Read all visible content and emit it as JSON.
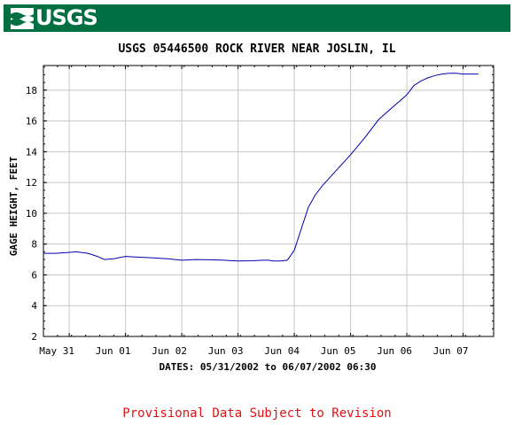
{
  "header": {
    "logo_text": "USGS",
    "logo_icon": "usgs-wave-icon",
    "banner_color": "#006f41"
  },
  "footer": {
    "note": "Provisional Data Subject to Revision",
    "note_color": "#e01010"
  },
  "chart_data": {
    "type": "line",
    "title": "USGS 05446500 ROCK RIVER NEAR JOSLIN, IL",
    "xlabel": "DATES: 05/31/2002 to 06/07/2002 06:30",
    "ylabel": "GAGE HEIGHT, FEET",
    "ylim": [
      2,
      19.6
    ],
    "yticks": [
      2,
      4,
      6,
      8,
      10,
      12,
      14,
      16,
      18
    ],
    "xlim": [
      "2002-05-30 13:00",
      "2002-06-07 13:00"
    ],
    "xticks": [
      {
        "label": "May 31",
        "at": "2002-05-31 00:00"
      },
      {
        "label": "Jun 01",
        "at": "2002-06-01 00:00"
      },
      {
        "label": "Jun 02",
        "at": "2002-06-02 00:00"
      },
      {
        "label": "Jun 03",
        "at": "2002-06-03 00:00"
      },
      {
        "label": "Jun 04",
        "at": "2002-06-04 00:00"
      },
      {
        "label": "Jun 05",
        "at": "2002-06-05 00:00"
      },
      {
        "label": "Jun 06",
        "at": "2002-06-06 00:00"
      },
      {
        "label": "Jun 07",
        "at": "2002-06-07 00:00"
      }
    ],
    "gridlines": true,
    "series_color": "#0000b0",
    "series": [
      {
        "x": [
          "2002-05-30 13:00",
          "2002-05-30 18:00",
          "2002-05-30 23:00",
          "2002-05-31 03:00",
          "2002-05-31 08:00",
          "2002-05-31 12:00",
          "2002-05-31 15:00",
          "2002-05-31 19:00",
          "2002-06-01 00:00",
          "2002-06-01 06:00",
          "2002-06-01 12:00",
          "2002-06-01 18:00",
          "2002-06-02 00:00",
          "2002-06-02 06:00",
          "2002-06-02 12:00",
          "2002-06-02 18:00",
          "2002-06-03 00:00",
          "2002-06-03 06:00",
          "2002-06-03 11:00",
          "2002-06-03 13:00",
          "2002-06-03 15:00",
          "2002-06-03 18:00",
          "2002-06-03 21:00",
          "2002-06-04 00:00",
          "2002-06-04 03:00",
          "2002-06-04 06:00",
          "2002-06-04 09:00",
          "2002-06-04 12:00",
          "2002-06-04 18:00",
          "2002-06-05 00:00",
          "2002-06-05 06:00",
          "2002-06-05 12:00",
          "2002-06-05 18:00",
          "2002-06-05 21:00",
          "2002-06-06 00:00",
          "2002-06-06 01:00",
          "2002-06-06 02:00",
          "2002-06-06 03:00",
          "2002-06-06 06:00",
          "2002-06-06 09:00",
          "2002-06-06 12:00",
          "2002-06-06 15:00",
          "2002-06-06 18:00",
          "2002-06-06 21:00",
          "2002-06-07 00:00",
          "2002-06-07 03:00",
          "2002-06-07 06:30"
        ],
        "y": [
          7.4,
          7.4,
          7.45,
          7.5,
          7.4,
          7.2,
          7.0,
          7.05,
          7.2,
          7.15,
          7.1,
          7.05,
          6.95,
          7.0,
          6.98,
          6.95,
          6.9,
          6.92,
          6.95,
          6.95,
          6.9,
          6.9,
          6.95,
          7.6,
          9.0,
          10.4,
          11.2,
          11.8,
          12.8,
          13.8,
          14.9,
          16.1,
          16.9,
          17.3,
          17.7,
          17.9,
          18.1,
          18.3,
          18.6,
          18.8,
          18.95,
          19.05,
          19.1,
          19.1,
          19.05,
          19.05,
          19.05
        ]
      }
    ]
  }
}
